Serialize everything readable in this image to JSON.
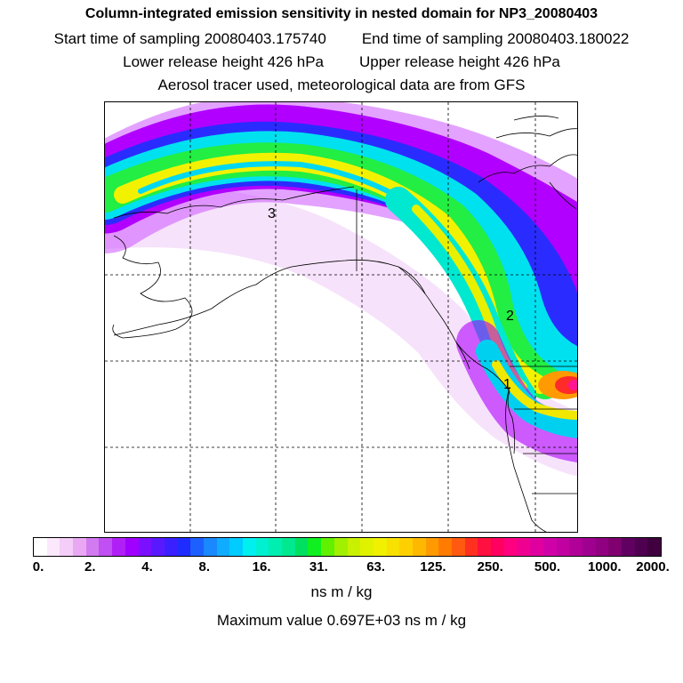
{
  "header": {
    "title": "Column-integrated emission sensitivity in nested domain for NP3_20080403",
    "start_time": "Start time of sampling 20080403.175740",
    "end_time": "End time of sampling 20080403.180022",
    "lower_height": "Lower release height  426 hPa",
    "upper_height": "Upper release height  426 hPa",
    "tracer_note": "Aerosol tracer used, meteorological data are from GFS"
  },
  "map": {
    "day_labels": [
      "3",
      "2",
      "1"
    ],
    "plume_colors": {
      "outer": "#f2d6fa",
      "purple": "#b100ff",
      "blue": "#2a2cff",
      "cyan": "#00e1f0",
      "green": "#22ee44",
      "yellow": "#f2f200",
      "orange": "#ff9a00",
      "red": "#ff2a2a",
      "magenta": "#ff1493"
    }
  },
  "colorbar": {
    "tick_labels": [
      "0.",
      "2.",
      "4.",
      "8.",
      "16.",
      "31.",
      "63.",
      "125.",
      "250.",
      "500.",
      "1000.",
      "2000."
    ],
    "segment_colors": [
      "#ffffff",
      "#fbe8fc",
      "#f4cdf8",
      "#eaa8f4",
      "#d27af0",
      "#c050f4",
      "#b020f6",
      "#a000ff",
      "#7a10ff",
      "#5a18ff",
      "#3a20ff",
      "#1e2cff",
      "#1c60ff",
      "#1a88ff",
      "#10acff",
      "#00ccff",
      "#00f0f0",
      "#00f0d0",
      "#00eeb0",
      "#00e890",
      "#00e060",
      "#10f020",
      "#60f000",
      "#a0f000",
      "#c8f000",
      "#e0f200",
      "#f0f000",
      "#f8e000",
      "#ffd000",
      "#ffb800",
      "#ff9a00",
      "#ff7c00",
      "#ff5a10",
      "#ff3020",
      "#ff1040",
      "#ff0060",
      "#ff0080",
      "#f00090",
      "#e000a0",
      "#d000a8",
      "#c000a0",
      "#b00098",
      "#a00090",
      "#900080",
      "#800070",
      "#600060",
      "#500050",
      "#400040"
    ],
    "units": "ns m / kg",
    "max_value": "Maximum value  0.697E+03 ns m / kg"
  }
}
